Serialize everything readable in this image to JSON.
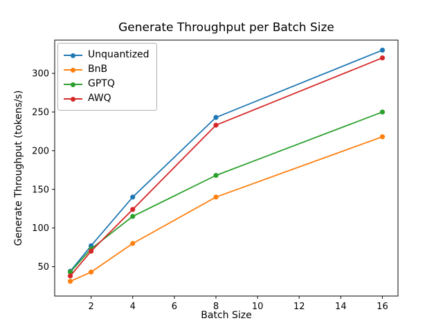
{
  "figure": {
    "background": "#ffffff",
    "spine_color": "#000000",
    "tick_font_px": 13
  },
  "chart_data": {
    "type": "line",
    "title": "Generate Throughput per Batch Size",
    "xlabel": "Batch Size",
    "ylabel": "Generate Throughput (tokens/s)",
    "x": [
      1,
      2,
      4,
      8,
      16
    ],
    "series": [
      {
        "name": "Unquantized",
        "color": "#1f77b4",
        "values": [
          44,
          77,
          140,
          243,
          330
        ]
      },
      {
        "name": "BnB",
        "color": "#ff7f0e",
        "values": [
          31,
          43,
          80,
          140,
          218
        ]
      },
      {
        "name": "GPTQ",
        "color": "#2ca02c",
        "values": [
          43,
          73,
          115,
          168,
          250
        ]
      },
      {
        "name": "AWQ",
        "color": "#d62728",
        "values": [
          38,
          70,
          124,
          233,
          320
        ]
      }
    ],
    "xticks": [
      2,
      4,
      6,
      8,
      10,
      12,
      14,
      16
    ],
    "yticks": [
      50,
      100,
      150,
      200,
      250,
      300
    ],
    "xlim": [
      0.25,
      16.75
    ],
    "ylim": [
      12,
      343
    ],
    "legend_position": "upper left",
    "grid": false,
    "marker": "o",
    "line_width": 1.8,
    "marker_radius": 3.6
  }
}
